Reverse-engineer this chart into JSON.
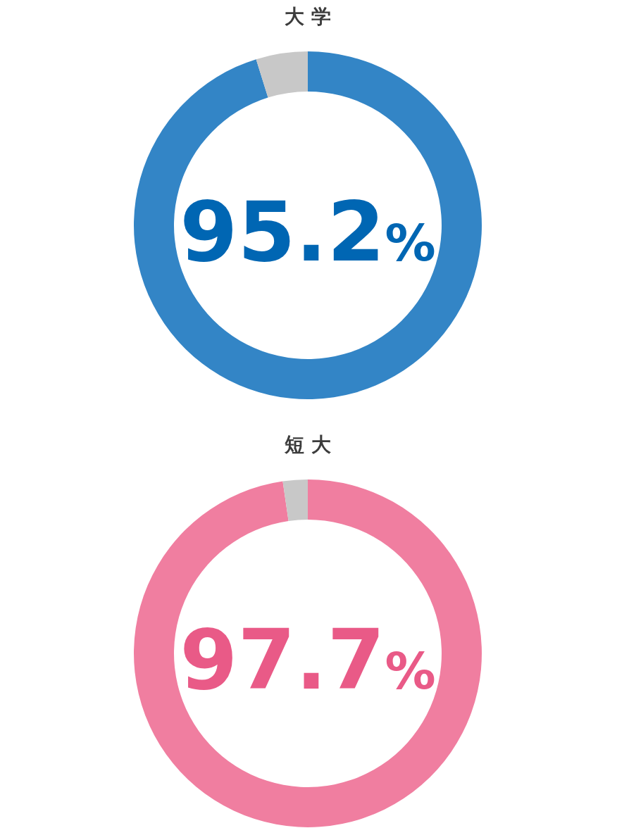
{
  "chart_data": [
    {
      "type": "donut",
      "title": "大 学",
      "categories": [
        null,
        null
      ],
      "values": [
        95.2,
        4.8
      ],
      "colors": [
        "#3385c6",
        "#c8c8c8"
      ],
      "value_labels": [
        "95.2%",
        null
      ]
    },
    {
      "type": "donut",
      "title": "短 大",
      "categories": [
        null,
        null
      ],
      "values": [
        97.7,
        2.3
      ],
      "colors": [
        "#f07ea0",
        "#c8c8c8"
      ],
      "value_labels": [
        "97.7%",
        null
      ]
    }
  ]
}
